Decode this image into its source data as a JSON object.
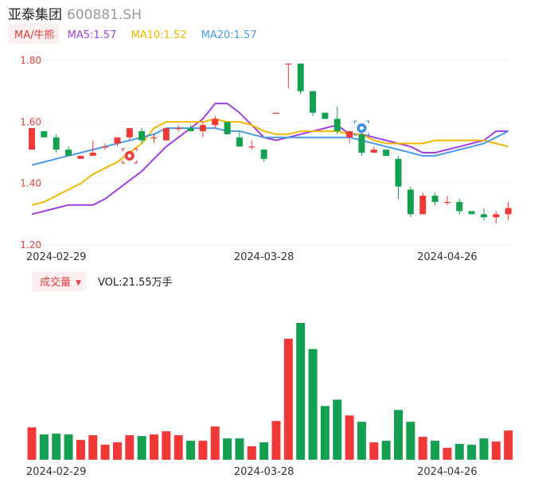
{
  "header": {
    "name": "亚泰集团",
    "code": "600881.SH"
  },
  "ma_legend": {
    "tag": "MA/牛熊",
    "items": [
      {
        "label": "MA5:1.57",
        "color": "#a040e0"
      },
      {
        "label": "MA10:1.52",
        "color": "#f0b800"
      },
      {
        "label": "MA20:1.57",
        "color": "#4a9be8"
      }
    ]
  },
  "volume_legend": {
    "tag": "成交量",
    "value": "VOL:21.55万手"
  },
  "colors": {
    "up": "#f03838",
    "down": "#14a050",
    "axis_label": "#e04040",
    "date_label": "#333333",
    "grid": "#eeeeee"
  },
  "icons": {
    "bull": "bull-icon",
    "bear": "bear-icon"
  },
  "chart_data": [
    {
      "type": "candlestick",
      "y_ticks": [
        "1.80",
        "1.60",
        "1.40",
        "1.20"
      ],
      "ylim": [
        1.2,
        1.8
      ],
      "x_tick_labels": [
        "2024-02-29",
        "2024-03-28",
        "2024-04-26"
      ],
      "x_tick_indices": [
        2,
        19,
        34
      ],
      "candles": [
        {
          "o": 1.51,
          "h": 1.58,
          "l": 1.51,
          "c": 1.58
        },
        {
          "o": 1.57,
          "h": 1.57,
          "l": 1.55,
          "c": 1.55
        },
        {
          "o": 1.55,
          "h": 1.56,
          "l": 1.5,
          "c": 1.51
        },
        {
          "o": 1.51,
          "h": 1.52,
          "l": 1.49,
          "c": 1.49
        },
        {
          "o": 1.48,
          "h": 1.49,
          "l": 1.48,
          "c": 1.49
        },
        {
          "o": 1.49,
          "h": 1.54,
          "l": 1.49,
          "c": 1.5
        },
        {
          "o": 1.52,
          "h": 1.53,
          "l": 1.51,
          "c": 1.52
        },
        {
          "o": 1.53,
          "h": 1.55,
          "l": 1.52,
          "c": 1.55
        },
        {
          "o": 1.55,
          "h": 1.58,
          "l": 1.54,
          "c": 1.58
        },
        {
          "o": 1.57,
          "h": 1.58,
          "l": 1.53,
          "c": 1.54
        },
        {
          "o": 1.55,
          "h": 1.56,
          "l": 1.53,
          "c": 1.55
        },
        {
          "o": 1.54,
          "h": 1.58,
          "l": 1.54,
          "c": 1.58
        },
        {
          "o": 1.58,
          "h": 1.59,
          "l": 1.57,
          "c": 1.58
        },
        {
          "o": 1.58,
          "h": 1.59,
          "l": 1.57,
          "c": 1.57
        },
        {
          "o": 1.57,
          "h": 1.6,
          "l": 1.55,
          "c": 1.59
        },
        {
          "o": 1.59,
          "h": 1.62,
          "l": 1.58,
          "c": 1.61
        },
        {
          "o": 1.6,
          "h": 1.6,
          "l": 1.56,
          "c": 1.56
        },
        {
          "o": 1.55,
          "h": 1.57,
          "l": 1.52,
          "c": 1.52
        },
        {
          "o": 1.52,
          "h": 1.54,
          "l": 1.51,
          "c": 1.52
        },
        {
          "o": 1.51,
          "h": 1.51,
          "l": 1.47,
          "c": 1.48
        },
        {
          "o": 1.63,
          "h": 1.63,
          "l": 1.63,
          "c": 1.63
        },
        {
          "o": 1.79,
          "h": 1.79,
          "l": 1.71,
          "c": 1.79
        },
        {
          "o": 1.79,
          "h": 1.79,
          "l": 1.69,
          "c": 1.7
        },
        {
          "o": 1.7,
          "h": 1.7,
          "l": 1.62,
          "c": 1.63
        },
        {
          "o": 1.63,
          "h": 1.63,
          "l": 1.61,
          "c": 1.61
        },
        {
          "o": 1.61,
          "h": 1.65,
          "l": 1.56,
          "c": 1.57
        },
        {
          "o": 1.55,
          "h": 1.57,
          "l": 1.53,
          "c": 1.57
        },
        {
          "o": 1.56,
          "h": 1.57,
          "l": 1.49,
          "c": 1.5
        },
        {
          "o": 1.5,
          "h": 1.52,
          "l": 1.5,
          "c": 1.51
        },
        {
          "o": 1.51,
          "h": 1.51,
          "l": 1.49,
          "c": 1.49
        },
        {
          "o": 1.48,
          "h": 1.49,
          "l": 1.35,
          "c": 1.39
        },
        {
          "o": 1.38,
          "h": 1.39,
          "l": 1.29,
          "c": 1.3
        },
        {
          "o": 1.3,
          "h": 1.37,
          "l": 1.3,
          "c": 1.36
        },
        {
          "o": 1.36,
          "h": 1.37,
          "l": 1.33,
          "c": 1.34
        },
        {
          "o": 1.34,
          "h": 1.36,
          "l": 1.33,
          "c": 1.34
        },
        {
          "o": 1.34,
          "h": 1.35,
          "l": 1.3,
          "c": 1.31
        },
        {
          "o": 1.31,
          "h": 1.31,
          "l": 1.3,
          "c": 1.3
        },
        {
          "o": 1.3,
          "h": 1.32,
          "l": 1.28,
          "c": 1.29
        },
        {
          "o": 1.29,
          "h": 1.31,
          "l": 1.27,
          "c": 1.3
        },
        {
          "o": 1.3,
          "h": 1.34,
          "l": 1.28,
          "c": 1.32
        }
      ],
      "ma_series": [
        {
          "name": "MA5",
          "color": "#a040e0",
          "values": [
            1.3,
            1.31,
            1.32,
            1.33,
            1.33,
            1.33,
            1.35,
            1.38,
            1.41,
            1.44,
            1.48,
            1.52,
            1.55,
            1.58,
            1.61,
            1.66,
            1.66,
            1.63,
            1.59,
            1.55,
            1.54,
            1.55,
            1.56,
            1.57,
            1.58,
            1.59,
            1.56,
            1.56,
            1.55,
            1.54,
            1.53,
            1.52,
            1.5,
            1.5,
            1.51,
            1.52,
            1.53,
            1.54,
            1.57,
            1.57
          ]
        },
        {
          "name": "MA10",
          "color": "#f0b800",
          "values": [
            1.33,
            1.34,
            1.36,
            1.38,
            1.4,
            1.43,
            1.45,
            1.47,
            1.5,
            1.53,
            1.58,
            1.6,
            1.6,
            1.6,
            1.6,
            1.61,
            1.6,
            1.6,
            1.59,
            1.57,
            1.56,
            1.56,
            1.57,
            1.57,
            1.57,
            1.57,
            1.56,
            1.56,
            1.54,
            1.53,
            1.53,
            1.53,
            1.53,
            1.54,
            1.54,
            1.54,
            1.54,
            1.54,
            1.53,
            1.52
          ]
        },
        {
          "name": "MA20",
          "color": "#4a9be8",
          "values": [
            1.46,
            1.47,
            1.48,
            1.49,
            1.5,
            1.51,
            1.52,
            1.53,
            1.54,
            1.55,
            1.56,
            1.58,
            1.58,
            1.58,
            1.58,
            1.58,
            1.57,
            1.57,
            1.56,
            1.55,
            1.55,
            1.55,
            1.55,
            1.55,
            1.55,
            1.55,
            1.55,
            1.54,
            1.53,
            1.52,
            1.51,
            1.5,
            1.49,
            1.49,
            1.5,
            1.51,
            1.52,
            1.53,
            1.55,
            1.57
          ]
        }
      ],
      "markers": [
        {
          "type": "bull",
          "index": 8,
          "price": 1.49
        },
        {
          "type": "bear",
          "index": 27,
          "price": 1.58
        }
      ]
    },
    {
      "type": "bar",
      "title": "成交量",
      "x_tick_labels": [
        "2024-02-29",
        "2024-03-28",
        "2024-04-26"
      ],
      "x_tick_indices": [
        2,
        19,
        34
      ],
      "ylim": [
        0,
        175
      ],
      "values": [
        41,
        32,
        33,
        32,
        25,
        31,
        19,
        22,
        31,
        30,
        32,
        36,
        31,
        24,
        24,
        42,
        27,
        27,
        17,
        22,
        49,
        153,
        173,
        140,
        68,
        76,
        56,
        48,
        22,
        24,
        63,
        48,
        29,
        24,
        15,
        20,
        19,
        27,
        23,
        37
      ],
      "colors": [
        "up",
        "down",
        "down",
        "down",
        "up",
        "up",
        "up",
        "up",
        "up",
        "down",
        "up",
        "up",
        "up",
        "down",
        "up",
        "up",
        "down",
        "down",
        "up",
        "down",
        "up",
        "up",
        "down",
        "down",
        "down",
        "down",
        "up",
        "down",
        "up",
        "down",
        "down",
        "down",
        "up",
        "down",
        "up",
        "down",
        "down",
        "down",
        "up",
        "up"
      ]
    }
  ]
}
